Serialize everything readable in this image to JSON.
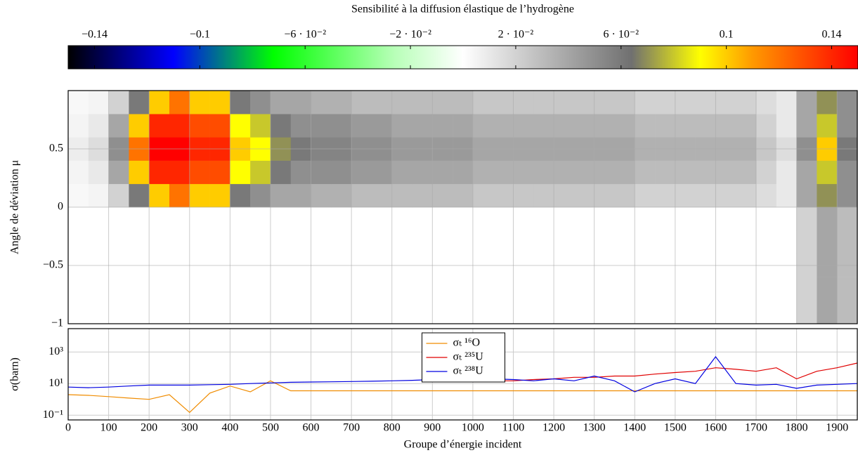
{
  "chart_data": [
    {
      "type": "colorbar",
      "title": "Sensibilité à la diffusion élastique de l’hydrogène",
      "clim": [
        -0.15,
        0.15
      ],
      "ticks": [
        {
          "value": -0.14,
          "label": "−0.14"
        },
        {
          "value": -0.1,
          "label": "−0.1"
        },
        {
          "value": -0.06,
          "label": "−6 · 10⁻²"
        },
        {
          "value": -0.02,
          "label": "−2 · 10⁻²"
        },
        {
          "value": 0.02,
          "label": "2 · 10⁻²"
        },
        {
          "value": 0.06,
          "label": "6 · 10⁻²"
        },
        0.1,
        0.14
      ],
      "colormap": [
        {
          "value": -0.15,
          "color": "#000000"
        },
        {
          "value": -0.11,
          "color": "#0000ff"
        },
        {
          "value": -0.072,
          "color": "#00ff00"
        },
        {
          "value": -0.026,
          "color": "#b8ffb8"
        },
        {
          "value": 0,
          "color": "#ffffff"
        },
        {
          "value": 0.064,
          "color": "#707070"
        },
        {
          "value": 0.09,
          "color": "#ffff00"
        },
        {
          "value": 0.11,
          "color": "#ff9900"
        },
        {
          "value": 0.15,
          "color": "#ff0000"
        }
      ]
    },
    {
      "type": "heatmap",
      "ylabel": "Angle de déviation μ",
      "xlim": [
        0,
        1950
      ],
      "ylim": [
        -1,
        1
      ],
      "yticks": [
        {
          "value": -1,
          "label": "−1"
        },
        {
          "value": -0.5,
          "label": "−0.5"
        },
        0,
        0.5
      ],
      "grid": true,
      "xbins": [
        0,
        50,
        100,
        150,
        200,
        250,
        300,
        350,
        400,
        450,
        500,
        550,
        600,
        650,
        700,
        750,
        800,
        850,
        900,
        950,
        1000,
        1050,
        1100,
        1150,
        1200,
        1250,
        1300,
        1350,
        1400,
        1450,
        1500,
        1550,
        1600,
        1650,
        1700,
        1750,
        1800,
        1850,
        1900,
        1950
      ],
      "ybins": [
        -1,
        -0.8,
        -0.6,
        -0.4,
        -0.2,
        0,
        0.2,
        0.4,
        0.6,
        0.8,
        1
      ],
      "values": [
        [
          null,
          null,
          null,
          null,
          null,
          null,
          null,
          null,
          null,
          null,
          null,
          null,
          null,
          null,
          null,
          null,
          null,
          null,
          null,
          null,
          null,
          null,
          null,
          null,
          null,
          null,
          null,
          null,
          null,
          null,
          null,
          null,
          null,
          null,
          null,
          null,
          0.02,
          0.04,
          0.03
        ],
        [
          null,
          null,
          null,
          null,
          null,
          null,
          null,
          null,
          null,
          null,
          null,
          null,
          null,
          null,
          null,
          null,
          null,
          null,
          null,
          null,
          null,
          null,
          null,
          null,
          null,
          null,
          null,
          null,
          null,
          null,
          null,
          null,
          null,
          null,
          null,
          null,
          0.02,
          0.04,
          0.03
        ],
        [
          null,
          null,
          null,
          null,
          null,
          null,
          null,
          null,
          null,
          null,
          null,
          null,
          null,
          null,
          null,
          null,
          null,
          null,
          null,
          null,
          null,
          null,
          null,
          null,
          null,
          null,
          null,
          null,
          null,
          null,
          null,
          null,
          null,
          null,
          null,
          null,
          0.02,
          0.04,
          0.03
        ],
        [
          null,
          null,
          null,
          null,
          null,
          null,
          null,
          null,
          null,
          null,
          null,
          null,
          null,
          null,
          null,
          null,
          null,
          null,
          null,
          null,
          null,
          null,
          null,
          null,
          null,
          null,
          null,
          null,
          null,
          null,
          null,
          null,
          null,
          null,
          null,
          null,
          0.02,
          0.04,
          0.03
        ],
        [
          null,
          null,
          null,
          null,
          null,
          null,
          null,
          null,
          null,
          null,
          null,
          null,
          null,
          null,
          null,
          null,
          null,
          null,
          null,
          null,
          null,
          null,
          null,
          null,
          null,
          null,
          null,
          null,
          null,
          null,
          null,
          null,
          null,
          null,
          null,
          null,
          0.02,
          0.04,
          0.03
        ],
        [
          0.003,
          0.005,
          0.02,
          0.06,
          0.1,
          0.12,
          0.1,
          0.1,
          0.06,
          0.05,
          0.04,
          0.04,
          0.035,
          0.035,
          0.03,
          0.03,
          0.03,
          0.03,
          0.03,
          0.03,
          0.025,
          0.025,
          0.025,
          0.025,
          0.025,
          0.025,
          0.025,
          0.025,
          0.02,
          0.02,
          0.02,
          0.02,
          0.02,
          0.02,
          0.015,
          0.01,
          0.04,
          0.07,
          0.05
        ],
        [
          0.005,
          0.01,
          0.04,
          0.1,
          0.14,
          0.14,
          0.13,
          0.13,
          0.09,
          0.08,
          0.06,
          0.05,
          0.05,
          0.05,
          0.045,
          0.045,
          0.04,
          0.04,
          0.04,
          0.04,
          0.035,
          0.035,
          0.035,
          0.035,
          0.035,
          0.035,
          0.035,
          0.035,
          0.03,
          0.03,
          0.03,
          0.03,
          0.03,
          0.03,
          0.02,
          0.01,
          0.04,
          0.08,
          0.05
        ],
        [
          0.008,
          0.015,
          0.05,
          0.12,
          0.15,
          0.15,
          0.14,
          0.14,
          0.1,
          0.09,
          0.07,
          0.06,
          0.055,
          0.055,
          0.05,
          0.05,
          0.045,
          0.045,
          0.045,
          0.045,
          0.04,
          0.04,
          0.04,
          0.04,
          0.04,
          0.04,
          0.04,
          0.04,
          0.035,
          0.035,
          0.035,
          0.035,
          0.035,
          0.035,
          0.025,
          0.015,
          0.05,
          0.1,
          0.06
        ],
        [
          0.005,
          0.01,
          0.04,
          0.1,
          0.14,
          0.14,
          0.13,
          0.13,
          0.09,
          0.08,
          0.06,
          0.05,
          0.05,
          0.05,
          0.045,
          0.045,
          0.04,
          0.04,
          0.04,
          0.04,
          0.035,
          0.035,
          0.035,
          0.035,
          0.035,
          0.035,
          0.035,
          0.035,
          0.03,
          0.03,
          0.03,
          0.03,
          0.03,
          0.03,
          0.02,
          0.01,
          0.04,
          0.08,
          0.05
        ],
        [
          0.003,
          0.005,
          0.02,
          0.06,
          0.1,
          0.12,
          0.1,
          0.1,
          0.06,
          0.05,
          0.04,
          0.04,
          0.035,
          0.035,
          0.03,
          0.03,
          0.03,
          0.03,
          0.03,
          0.03,
          0.025,
          0.025,
          0.025,
          0.025,
          0.025,
          0.025,
          0.025,
          0.025,
          0.02,
          0.02,
          0.02,
          0.02,
          0.02,
          0.02,
          0.015,
          0.01,
          0.04,
          0.07,
          0.05
        ]
      ]
    },
    {
      "type": "line",
      "ylabel": "σ(barn)",
      "xlabel": "Groupe d’énergie incident",
      "ylog": true,
      "grid": true,
      "legend": "top-center",
      "xlim": [
        0,
        1950
      ],
      "ylim": [
        0.05,
        30000
      ],
      "xticks": [
        0,
        100,
        200,
        300,
        400,
        500,
        600,
        700,
        800,
        900,
        1000,
        1100,
        1200,
        1300,
        1400,
        1500,
        1600,
        1700,
        1800,
        1900
      ],
      "yticks": [
        {
          "value": 0.1,
          "label": "10⁻¹"
        },
        {
          "value": 10,
          "label": "10¹"
        },
        {
          "value": 1000,
          "label": "10³"
        }
      ],
      "x": [
        0,
        50,
        100,
        150,
        200,
        250,
        300,
        350,
        400,
        450,
        500,
        550,
        600,
        650,
        700,
        750,
        800,
        850,
        900,
        950,
        1000,
        1050,
        1100,
        1150,
        1200,
        1250,
        1300,
        1350,
        1400,
        1450,
        1500,
        1550,
        1600,
        1650,
        1700,
        1750,
        1800,
        1850,
        1900,
        1950
      ],
      "series": [
        {
          "name": "σₜ ¹⁶O",
          "color": "#f08c00",
          "values": [
            2,
            1.8,
            1.5,
            1.2,
            1,
            2,
            0.15,
            2.5,
            7,
            3,
            15,
            3.5,
            3.5,
            3.5,
            3.5,
            3.5,
            3.5,
            3.5,
            3.5,
            3.5,
            3.5,
            3.5,
            3.5,
            3.5,
            3.5,
            3.5,
            3.5,
            3.5,
            3.5,
            3.5,
            3.5,
            3.5,
            3.5,
            3.5,
            3.5,
            3.5,
            3.5,
            3.5,
            3.5,
            3.5
          ]
        },
        {
          "name": "σₜ ²³⁵U",
          "color": "#e00000",
          "values": [
            null,
            null,
            null,
            null,
            null,
            null,
            null,
            null,
            null,
            null,
            null,
            null,
            null,
            null,
            null,
            null,
            null,
            null,
            null,
            null,
            null,
            15,
            15,
            18,
            20,
            25,
            25,
            30,
            30,
            40,
            50,
            60,
            100,
            80,
            60,
            100,
            20,
            60,
            100,
            200
          ]
        },
        {
          "name": "σₜ ²³⁸U",
          "color": "#0000e0",
          "values": [
            6,
            5.5,
            6,
            7,
            8,
            8,
            8,
            8.5,
            9,
            10,
            11,
            12,
            12.5,
            13,
            13.5,
            14,
            15,
            16,
            18,
            17,
            15,
            20,
            18,
            15,
            20,
            15,
            30,
            15,
            3,
            10,
            20,
            10,
            500,
            10,
            8,
            9,
            5,
            8,
            9,
            10
          ]
        }
      ]
    }
  ]
}
